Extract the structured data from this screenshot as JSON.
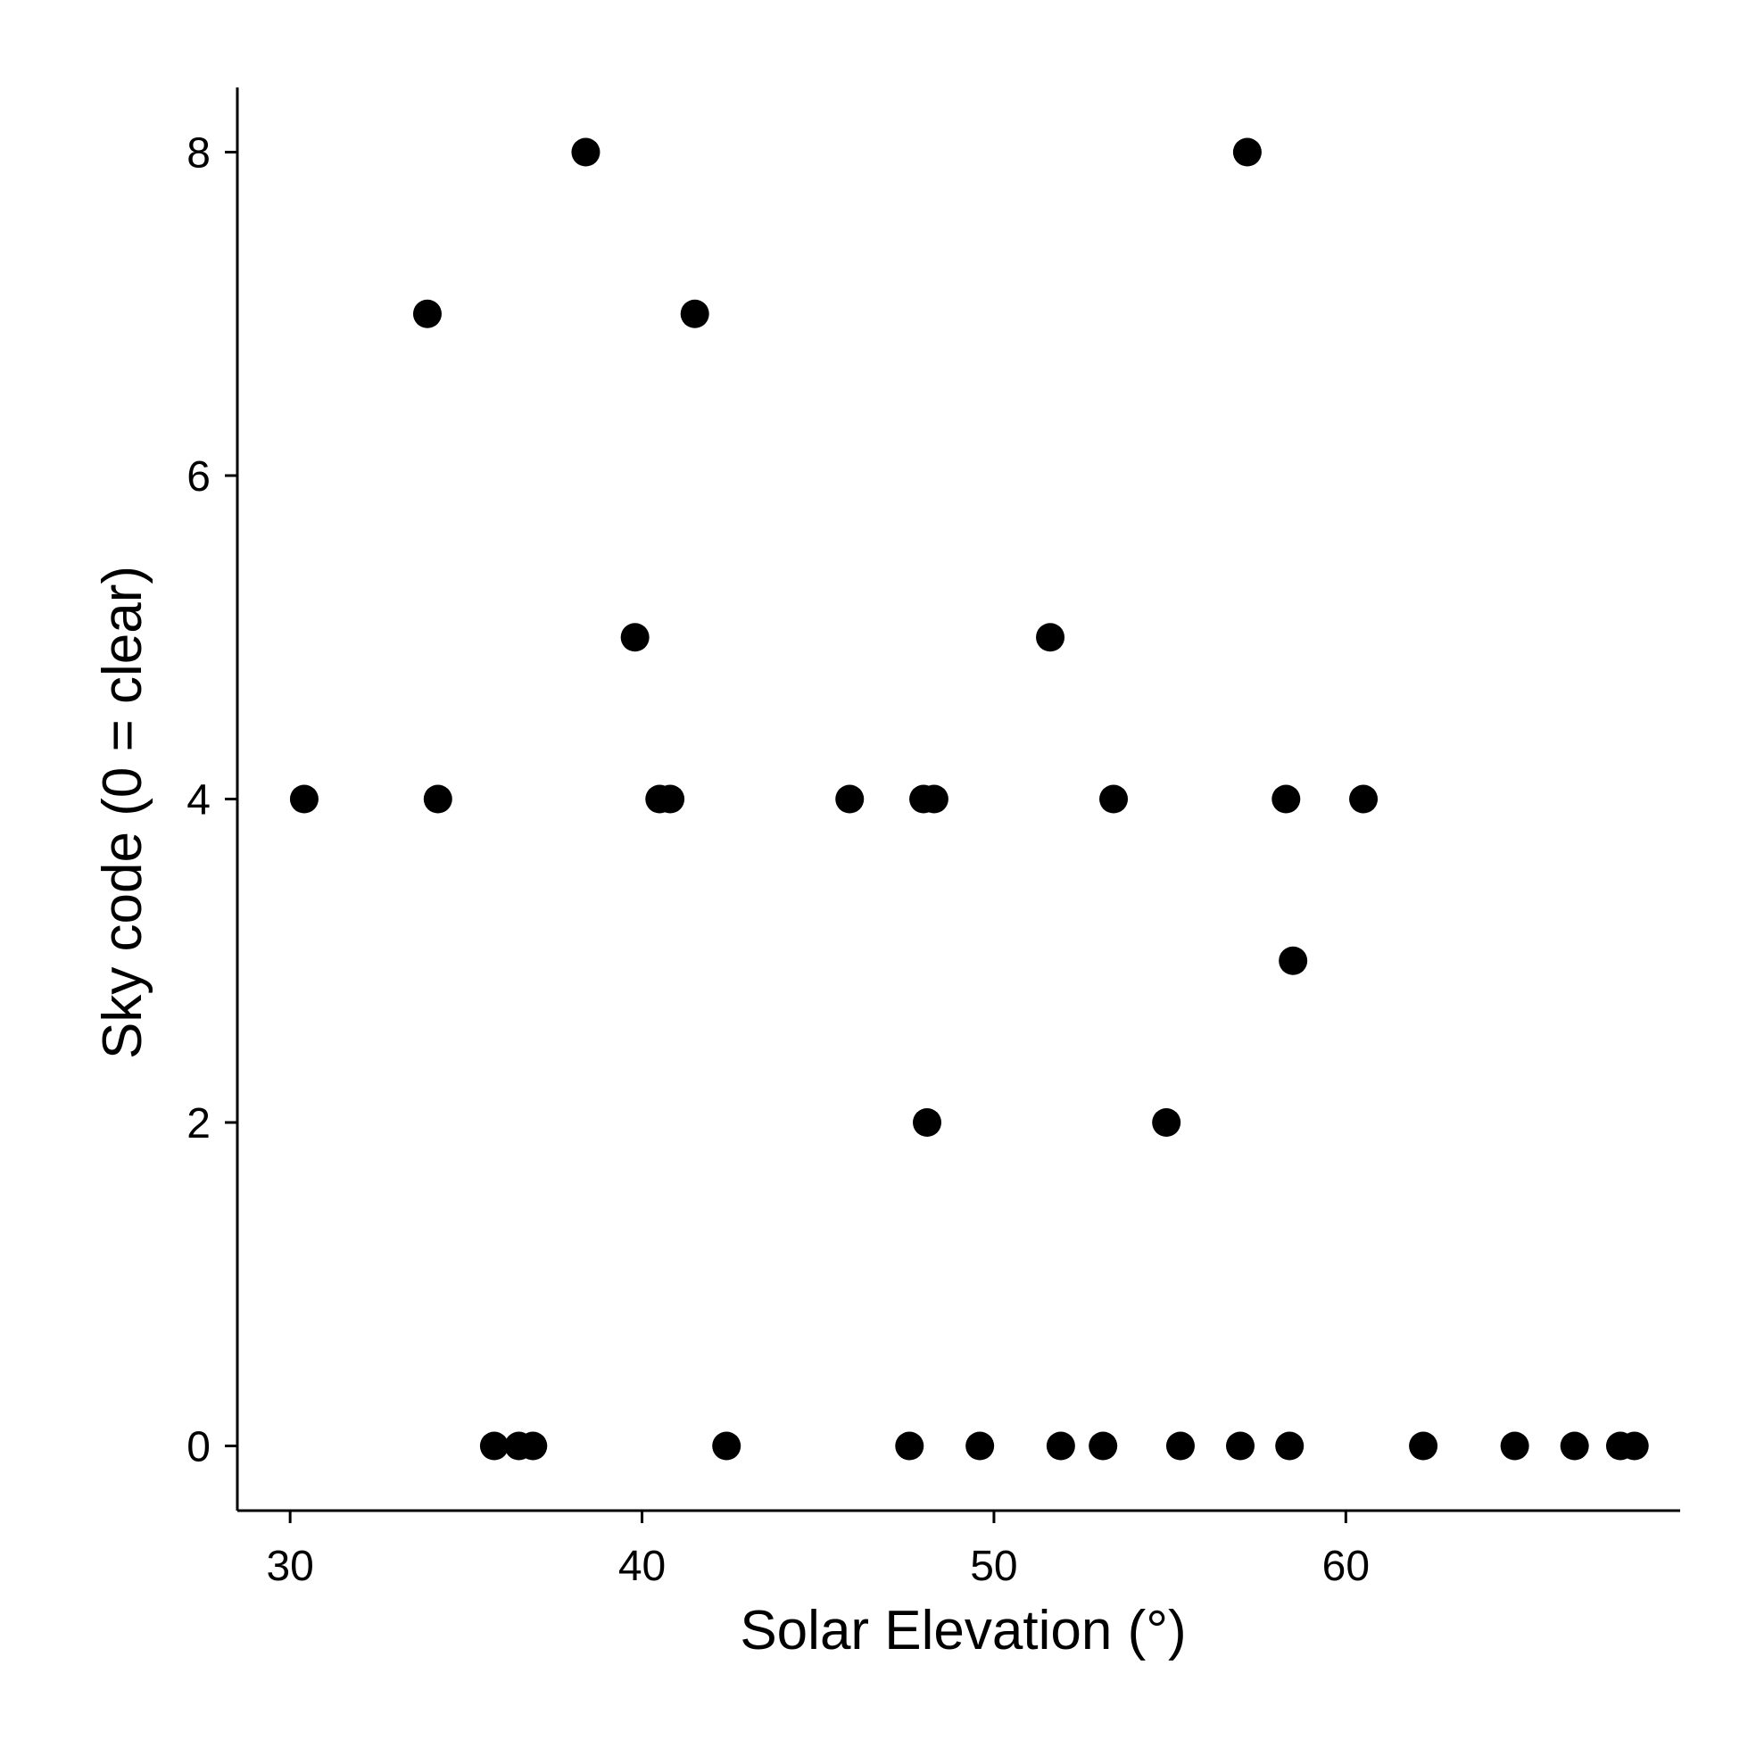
{
  "chart_data": {
    "type": "scatter",
    "title": "",
    "xlabel": "Solar Elevation (°)",
    "ylabel": "Sky code (0 = clear)",
    "xlim": [
      28.5,
      69.5
    ],
    "ylim": [
      -0.4,
      8.4
    ],
    "xticks": [
      30,
      40,
      50,
      60
    ],
    "yticks": [
      0,
      2,
      4,
      6,
      8
    ],
    "xtick_labels": [
      "30",
      "40",
      "50",
      "60"
    ],
    "ytick_labels": [
      "0",
      "2",
      "4",
      "6",
      "8"
    ],
    "grid": false,
    "legend": "none",
    "marker_color": "#000000",
    "points": [
      {
        "x": 30.4,
        "y": 4
      },
      {
        "x": 33.9,
        "y": 7
      },
      {
        "x": 34.2,
        "y": 4
      },
      {
        "x": 35.8,
        "y": 0
      },
      {
        "x": 36.5,
        "y": 0
      },
      {
        "x": 36.9,
        "y": 0
      },
      {
        "x": 38.4,
        "y": 8
      },
      {
        "x": 39.8,
        "y": 5
      },
      {
        "x": 40.5,
        "y": 4
      },
      {
        "x": 40.8,
        "y": 4
      },
      {
        "x": 41.5,
        "y": 7
      },
      {
        "x": 42.4,
        "y": 0
      },
      {
        "x": 45.9,
        "y": 4
      },
      {
        "x": 47.6,
        "y": 0
      },
      {
        "x": 48.0,
        "y": 4
      },
      {
        "x": 48.3,
        "y": 4
      },
      {
        "x": 48.1,
        "y": 2
      },
      {
        "x": 49.6,
        "y": 0
      },
      {
        "x": 51.6,
        "y": 5
      },
      {
        "x": 51.9,
        "y": 0
      },
      {
        "x": 53.1,
        "y": 0
      },
      {
        "x": 53.4,
        "y": 4
      },
      {
        "x": 54.9,
        "y": 2
      },
      {
        "x": 55.3,
        "y": 0
      },
      {
        "x": 57.0,
        "y": 0
      },
      {
        "x": 57.2,
        "y": 8
      },
      {
        "x": 58.3,
        "y": 4
      },
      {
        "x": 58.4,
        "y": 0
      },
      {
        "x": 58.5,
        "y": 3
      },
      {
        "x": 60.5,
        "y": 4
      },
      {
        "x": 62.2,
        "y": 0
      },
      {
        "x": 64.8,
        "y": 0
      },
      {
        "x": 66.5,
        "y": 0
      },
      {
        "x": 67.8,
        "y": 0
      },
      {
        "x": 68.2,
        "y": 0
      }
    ]
  }
}
